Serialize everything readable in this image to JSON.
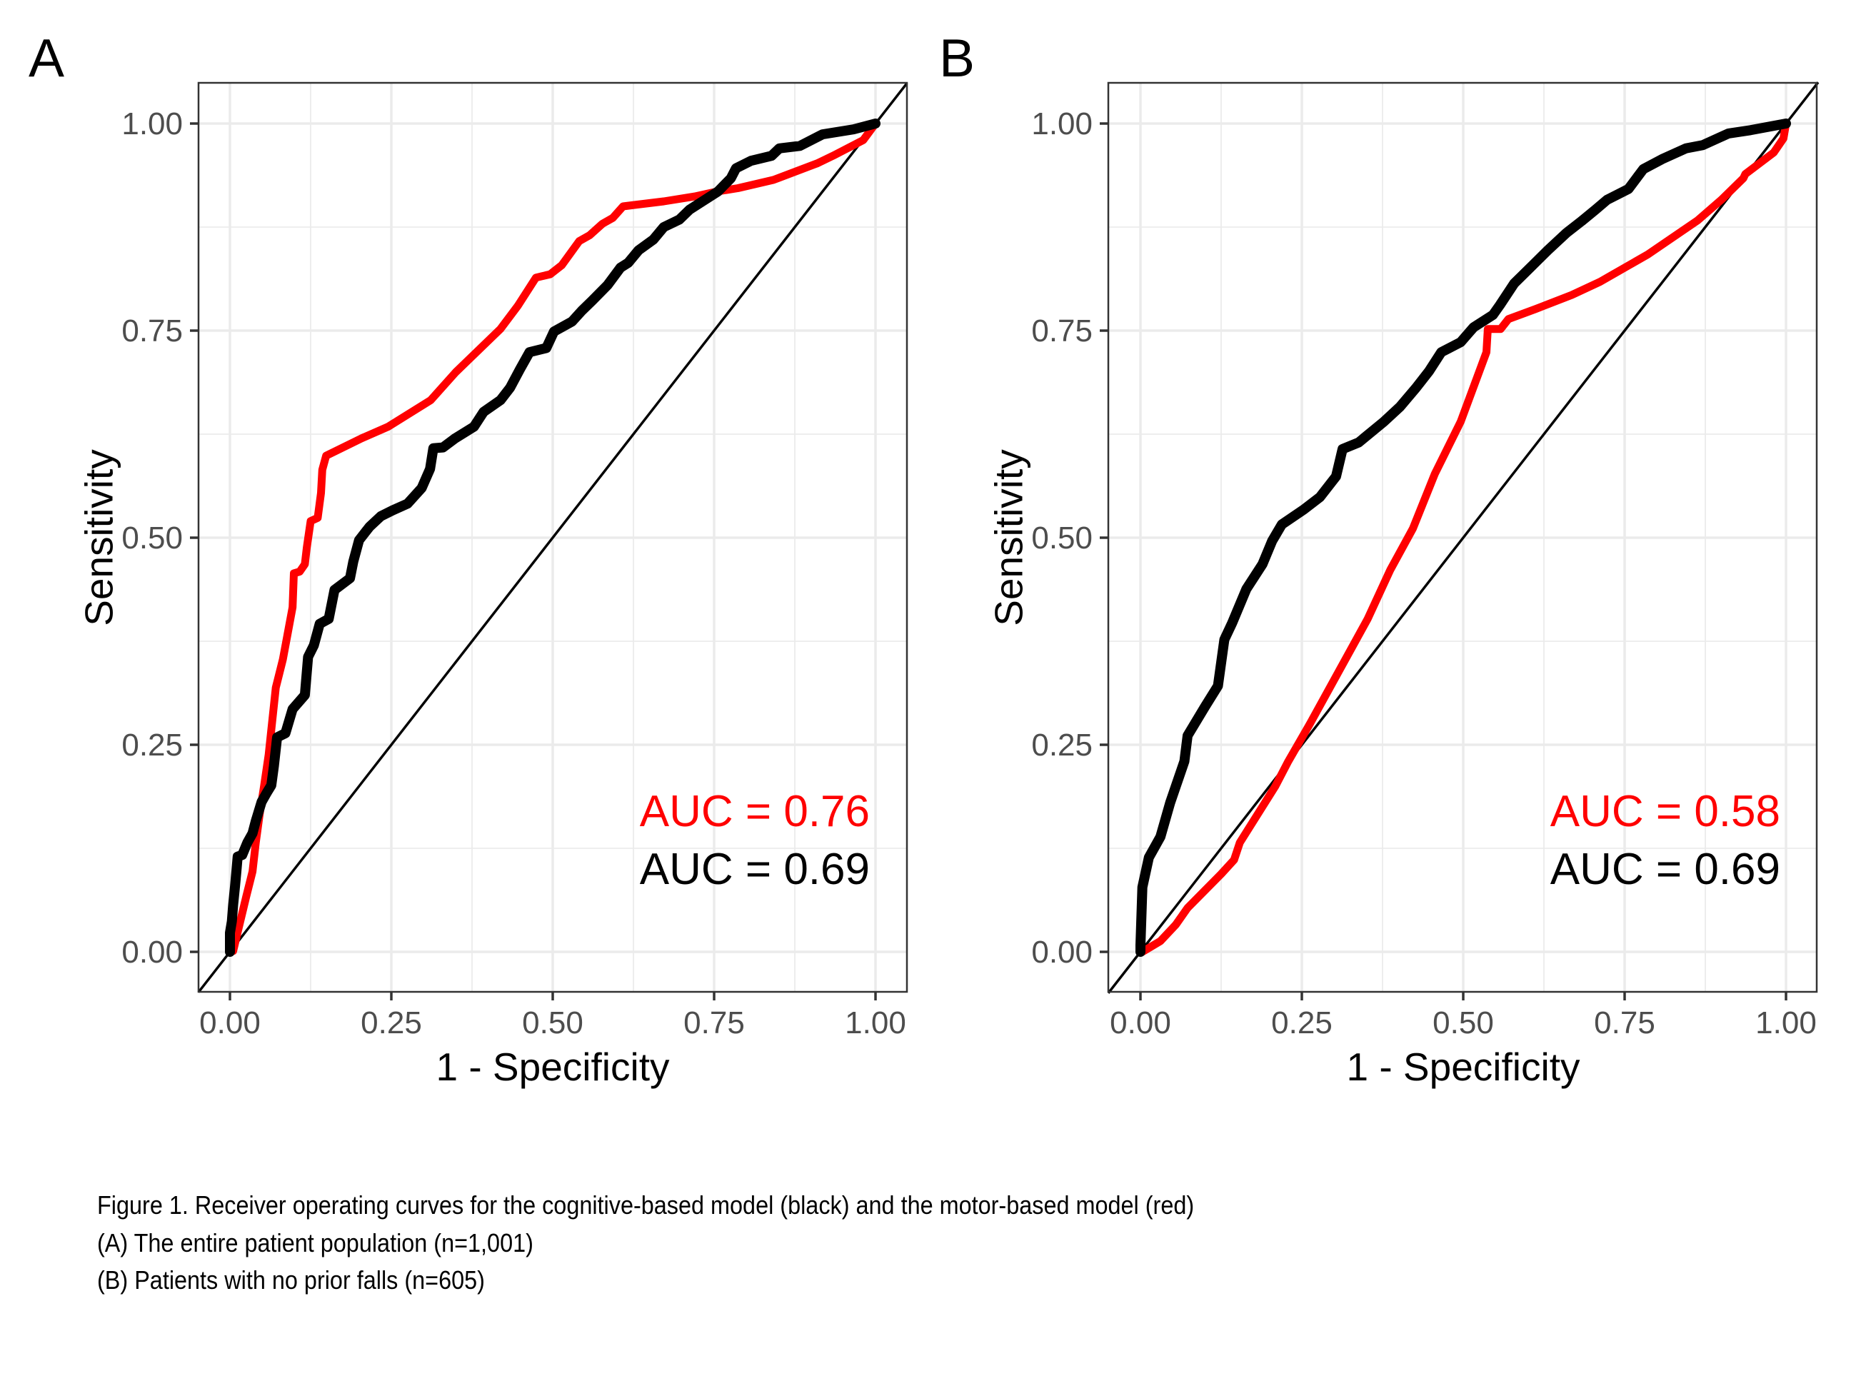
{
  "chart_data": [
    {
      "type": "line",
      "panel_label": "A",
      "xlabel": "1 - Specificity",
      "ylabel": "Sensitivity",
      "xlim": [
        0,
        1
      ],
      "ylim": [
        0,
        1
      ],
      "x_ticks": [
        "0.00",
        "0.25",
        "0.50",
        "0.75",
        "1.00"
      ],
      "y_ticks": [
        "0.00",
        "0.25",
        "0.50",
        "0.75",
        "1.00"
      ],
      "grid": true,
      "reference_line": "diagonal y = x",
      "annotations": [
        {
          "text": "AUC = 0.76",
          "color": "#ff0000",
          "position": "bottom-right"
        },
        {
          "text": "AUC = 0.69",
          "color": "#000000",
          "position": "bottom-right"
        }
      ],
      "series": [
        {
          "name": "motor-based model",
          "color": "#ff0000",
          "auc": 0.76,
          "x": [
            0,
            0.005,
            0.016,
            0.025,
            0.035,
            0.04,
            0.046,
            0.053,
            0.06,
            0.071,
            0.082,
            0.097,
            0.099,
            0.108,
            0.116,
            0.119,
            0.125,
            0.136,
            0.141,
            0.143,
            0.149,
            0.204,
            0.245,
            0.311,
            0.35,
            0.419,
            0.446,
            0.474,
            0.496,
            0.514,
            0.541,
            0.557,
            0.577,
            0.593,
            0.609,
            0.672,
            0.72,
            0.755,
            0.787,
            0.842,
            0.91,
            0.934,
            0.981,
            1.0
          ],
          "y": [
            0,
            0.001,
            0.037,
            0.066,
            0.097,
            0.132,
            0.166,
            0.201,
            0.238,
            0.319,
            0.353,
            0.416,
            0.457,
            0.459,
            0.468,
            0.488,
            0.52,
            0.524,
            0.554,
            0.582,
            0.599,
            0.62,
            0.634,
            0.666,
            0.7,
            0.752,
            0.78,
            0.814,
            0.818,
            0.829,
            0.858,
            0.865,
            0.879,
            0.886,
            0.9,
            0.906,
            0.912,
            0.918,
            0.922,
            0.932,
            0.952,
            0.961,
            0.98,
            1.0
          ]
        },
        {
          "name": "cognitive-based model",
          "color": "#000000",
          "auc": 0.69,
          "x": [
            0,
            0,
            0,
            0.003,
            0.005,
            0.008,
            0.01,
            0.012,
            0.019,
            0.027,
            0.035,
            0.04,
            0.049,
            0.057,
            0.064,
            0.068,
            0.073,
            0.086,
            0.097,
            0.116,
            0.121,
            0.13,
            0.139,
            0.153,
            0.162,
            0.186,
            0.191,
            0.2,
            0.216,
            0.234,
            0.252,
            0.275,
            0.297,
            0.31,
            0.315,
            0.33,
            0.349,
            0.378,
            0.393,
            0.419,
            0.434,
            0.449,
            0.464,
            0.49,
            0.502,
            0.53,
            0.545,
            0.561,
            0.585,
            0.605,
            0.617,
            0.633,
            0.656,
            0.672,
            0.696,
            0.712,
            0.732,
            0.756,
            0.776,
            0.784,
            0.807,
            0.839,
            0.851,
            0.883,
            0.918,
            0.966,
            1.0
          ],
          "y": [
            0,
            0.003,
            0.023,
            0.037,
            0.057,
            0.08,
            0.097,
            0.115,
            0.117,
            0.132,
            0.143,
            0.158,
            0.181,
            0.192,
            0.201,
            0.224,
            0.259,
            0.264,
            0.293,
            0.31,
            0.356,
            0.37,
            0.396,
            0.402,
            0.437,
            0.451,
            0.471,
            0.497,
            0.513,
            0.526,
            0.533,
            0.541,
            0.56,
            0.583,
            0.608,
            0.609,
            0.62,
            0.634,
            0.652,
            0.666,
            0.681,
            0.703,
            0.724,
            0.729,
            0.749,
            0.761,
            0.774,
            0.786,
            0.805,
            0.826,
            0.832,
            0.847,
            0.86,
            0.875,
            0.884,
            0.896,
            0.906,
            0.918,
            0.934,
            0.946,
            0.955,
            0.961,
            0.97,
            0.973,
            0.987,
            0.993,
            1.0
          ]
        }
      ]
    },
    {
      "type": "line",
      "panel_label": "B",
      "xlabel": "1 - Specificity",
      "ylabel": "Sensitivity",
      "xlim": [
        0,
        1
      ],
      "ylim": [
        0,
        1
      ],
      "x_ticks": [
        "0.00",
        "0.25",
        "0.50",
        "0.75",
        "1.00"
      ],
      "y_ticks": [
        "0.00",
        "0.25",
        "0.50",
        "0.75",
        "1.00"
      ],
      "grid": true,
      "reference_line": "diagonal y = x",
      "annotations": [
        {
          "text": "AUC = 0.58",
          "color": "#ff0000",
          "position": "bottom-right"
        },
        {
          "text": "AUC = 0.69",
          "color": "#000000",
          "position": "bottom-right"
        }
      ],
      "series": [
        {
          "name": "motor-based model",
          "color": "#ff0000",
          "auc": 0.58,
          "x": [
            0,
            0.003,
            0.031,
            0.055,
            0.073,
            0.125,
            0.145,
            0.154,
            0.209,
            0.229,
            0.263,
            0.352,
            0.387,
            0.422,
            0.456,
            0.496,
            0.536,
            0.538,
            0.558,
            0.57,
            0.612,
            0.668,
            0.712,
            0.786,
            0.863,
            0.9,
            0.934,
            0.937,
            0.981,
            0.996,
            1.0
          ],
          "y": [
            0,
            0.0,
            0.013,
            0.033,
            0.053,
            0.094,
            0.111,
            0.132,
            0.2,
            0.23,
            0.276,
            0.402,
            0.461,
            0.511,
            0.577,
            0.64,
            0.724,
            0.752,
            0.752,
            0.764,
            0.776,
            0.793,
            0.809,
            0.842,
            0.883,
            0.908,
            0.934,
            0.939,
            0.965,
            0.982,
            1.0
          ]
        },
        {
          "name": "cognitive-based model",
          "color": "#000000",
          "auc": 0.69,
          "x": [
            0,
            0,
            0.003,
            0.013,
            0.031,
            0.046,
            0.068,
            0.073,
            0.1,
            0.12,
            0.13,
            0.142,
            0.164,
            0.189,
            0.204,
            0.219,
            0.253,
            0.278,
            0.303,
            0.313,
            0.338,
            0.377,
            0.402,
            0.427,
            0.447,
            0.466,
            0.496,
            0.516,
            0.546,
            0.557,
            0.579,
            0.609,
            0.631,
            0.66,
            0.683,
            0.705,
            0.723,
            0.756,
            0.779,
            0.808,
            0.845,
            0.871,
            0.911,
            0.945,
            1.0
          ],
          "y": [
            0,
            0.008,
            0.078,
            0.114,
            0.139,
            0.18,
            0.23,
            0.261,
            0.296,
            0.321,
            0.377,
            0.397,
            0.438,
            0.468,
            0.496,
            0.516,
            0.534,
            0.549,
            0.574,
            0.607,
            0.615,
            0.64,
            0.658,
            0.681,
            0.701,
            0.724,
            0.736,
            0.754,
            0.769,
            0.781,
            0.807,
            0.83,
            0.847,
            0.868,
            0.882,
            0.896,
            0.908,
            0.921,
            0.945,
            0.957,
            0.97,
            0.974,
            0.988,
            0.992,
            1.0
          ]
        }
      ]
    }
  ],
  "caption": {
    "line1": "Figure 1. Receiver operating curves for the cognitive-based model (black) and the motor-based model (red)",
    "line2": "(A) The entire patient population (n=1,001)",
    "line3": "(B) Patients with no prior falls (n=605)"
  }
}
